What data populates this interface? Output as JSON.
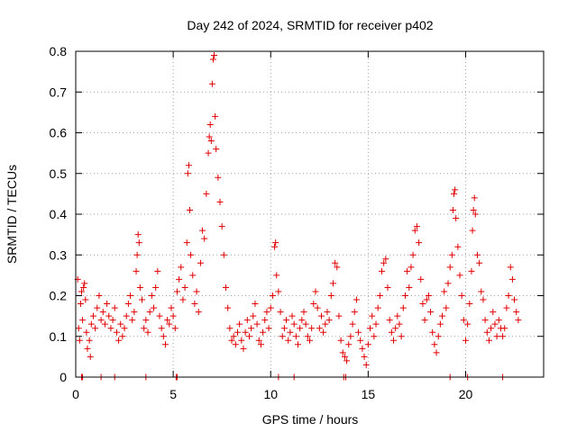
{
  "chart_data": {
    "type": "scatter",
    "title": "Day 242 of 2024, SRMTID for receiver p402",
    "xlabel": "GPS time / hours",
    "ylabel": "SRMTID / TECUs",
    "xlim": [
      0,
      24
    ],
    "ylim": [
      0,
      0.8
    ],
    "xticks": [
      0,
      5,
      10,
      15,
      20
    ],
    "yticks": [
      0,
      0.1,
      0.2,
      0.3,
      0.4,
      0.5,
      0.6,
      0.7,
      0.8
    ],
    "grid": true,
    "marker": "+",
    "colors": {
      "series": "#e00000",
      "grid": "#a0a0a0",
      "axes": "#000000"
    },
    "series": [
      {
        "name": "SRMTID",
        "points": [
          [
            0.1,
            0.24
          ],
          [
            0.15,
            0.12
          ],
          [
            0.2,
            0.09
          ],
          [
            0.25,
            0.18
          ],
          [
            0.3,
            0.21
          ],
          [
            0.35,
            0.14
          ],
          [
            0.4,
            0.22
          ],
          [
            0.45,
            0.23
          ],
          [
            0.5,
            0.19
          ],
          [
            0.55,
            0.11
          ],
          [
            0.6,
            0.07
          ],
          [
            0.7,
            0.09
          ],
          [
            0.75,
            0.05
          ],
          [
            0.8,
            0.13
          ],
          [
            0.9,
            0.15
          ],
          [
            1.0,
            0.12
          ],
          [
            1.1,
            0.17
          ],
          [
            1.2,
            0.2
          ],
          [
            1.3,
            0.14
          ],
          [
            1.4,
            0.16
          ],
          [
            1.5,
            0.13
          ],
          [
            1.6,
            0.18
          ],
          [
            1.7,
            0.15
          ],
          [
            1.8,
            0.12
          ],
          [
            1.9,
            0.14
          ],
          [
            2.0,
            0.17
          ],
          [
            2.1,
            0.11
          ],
          [
            2.2,
            0.09
          ],
          [
            2.3,
            0.13
          ],
          [
            2.4,
            0.1
          ],
          [
            2.5,
            0.12
          ],
          [
            2.6,
            0.15
          ],
          [
            2.7,
            0.18
          ],
          [
            2.8,
            0.2
          ],
          [
            2.9,
            0.14
          ],
          [
            3.0,
            0.16
          ],
          [
            3.1,
            0.26
          ],
          [
            3.15,
            0.3
          ],
          [
            3.2,
            0.35
          ],
          [
            3.25,
            0.33
          ],
          [
            3.3,
            0.22
          ],
          [
            3.4,
            0.19
          ],
          [
            3.5,
            0.12
          ],
          [
            3.6,
            0.14
          ],
          [
            3.7,
            0.11
          ],
          [
            3.8,
            0.16
          ],
          [
            3.9,
            0.2
          ],
          [
            4.0,
            0.17
          ],
          [
            4.1,
            0.22
          ],
          [
            4.2,
            0.26
          ],
          [
            4.3,
            0.15
          ],
          [
            4.4,
            0.12
          ],
          [
            4.5,
            0.1
          ],
          [
            4.6,
            0.08
          ],
          [
            4.7,
            0.14
          ],
          [
            4.8,
            0.13
          ],
          [
            4.9,
            0.17
          ],
          [
            5.0,
            0.15
          ],
          [
            5.1,
            0.12
          ],
          [
            5.2,
            0.21
          ],
          [
            5.3,
            0.24
          ],
          [
            5.4,
            0.27
          ],
          [
            5.5,
            0.19
          ],
          [
            5.6,
            0.22
          ],
          [
            5.7,
            0.33
          ],
          [
            5.75,
            0.5
          ],
          [
            5.8,
            0.52
          ],
          [
            5.85,
            0.41
          ],
          [
            5.9,
            0.3
          ],
          [
            6.0,
            0.25
          ],
          [
            6.1,
            0.18
          ],
          [
            6.2,
            0.21
          ],
          [
            6.3,
            0.16
          ],
          [
            6.4,
            0.28
          ],
          [
            6.5,
            0.36
          ],
          [
            6.6,
            0.34
          ],
          [
            6.7,
            0.45
          ],
          [
            6.8,
            0.55
          ],
          [
            6.85,
            0.59
          ],
          [
            6.9,
            0.62
          ],
          [
            6.95,
            0.58
          ],
          [
            7.0,
            0.72
          ],
          [
            7.05,
            0.78
          ],
          [
            7.1,
            0.79
          ],
          [
            7.15,
            0.64
          ],
          [
            7.2,
            0.56
          ],
          [
            7.3,
            0.49
          ],
          [
            7.4,
            0.43
          ],
          [
            7.5,
            0.37
          ],
          [
            7.6,
            0.3
          ],
          [
            7.7,
            0.22
          ],
          [
            7.8,
            0.17
          ],
          [
            7.9,
            0.12
          ],
          [
            8.0,
            0.09
          ],
          [
            8.1,
            0.1
          ],
          [
            8.2,
            0.08
          ],
          [
            8.3,
            0.11
          ],
          [
            8.4,
            0.13
          ],
          [
            8.5,
            0.09
          ],
          [
            8.6,
            0.07
          ],
          [
            8.7,
            0.11
          ],
          [
            8.8,
            0.14
          ],
          [
            8.9,
            0.1
          ],
          [
            9.0,
            0.12
          ],
          [
            9.1,
            0.15
          ],
          [
            9.2,
            0.18
          ],
          [
            9.3,
            0.13
          ],
          [
            9.4,
            0.09
          ],
          [
            9.5,
            0.08
          ],
          [
            9.6,
            0.11
          ],
          [
            9.7,
            0.14
          ],
          [
            9.8,
            0.16
          ],
          [
            9.9,
            0.12
          ],
          [
            10.0,
            0.17
          ],
          [
            10.1,
            0.2
          ],
          [
            10.2,
            0.32
          ],
          [
            10.25,
            0.33
          ],
          [
            10.3,
            0.25
          ],
          [
            10.4,
            0.21
          ],
          [
            10.5,
            0.16
          ],
          [
            10.6,
            0.1
          ],
          [
            10.7,
            0.12
          ],
          [
            10.8,
            0.14
          ],
          [
            10.9,
            0.09
          ],
          [
            11.0,
            0.11
          ],
          [
            11.1,
            0.15
          ],
          [
            11.2,
            0.13
          ],
          [
            11.3,
            0.1
          ],
          [
            11.4,
            0.08
          ],
          [
            11.5,
            0.12
          ],
          [
            11.6,
            0.14
          ],
          [
            11.7,
            0.16
          ],
          [
            11.8,
            0.13
          ],
          [
            11.9,
            0.1
          ],
          [
            12.0,
            0.09
          ],
          [
            12.1,
            0.12
          ],
          [
            12.2,
            0.18
          ],
          [
            12.3,
            0.21
          ],
          [
            12.4,
            0.17
          ],
          [
            12.5,
            0.12
          ],
          [
            12.6,
            0.15
          ],
          [
            12.7,
            0.11
          ],
          [
            12.8,
            0.13
          ],
          [
            12.9,
            0.16
          ],
          [
            13.0,
            0.14
          ],
          [
            13.1,
            0.2
          ],
          [
            13.2,
            0.23
          ],
          [
            13.3,
            0.28
          ],
          [
            13.4,
            0.27
          ],
          [
            13.5,
            0.15
          ],
          [
            13.6,
            0.09
          ],
          [
            13.7,
            0.06
          ],
          [
            13.8,
            0.05
          ],
          [
            13.9,
            0.04
          ],
          [
            14.0,
            0.08
          ],
          [
            14.1,
            0.1
          ],
          [
            14.2,
            0.13
          ],
          [
            14.3,
            0.16
          ],
          [
            14.4,
            0.19
          ],
          [
            14.5,
            0.11
          ],
          [
            14.6,
            0.09
          ],
          [
            14.7,
            0.07
          ],
          [
            14.8,
            0.05
          ],
          [
            14.9,
            0.03
          ],
          [
            15.0,
            0.08
          ],
          [
            15.1,
            0.12
          ],
          [
            15.2,
            0.15
          ],
          [
            15.3,
            0.1
          ],
          [
            15.4,
            0.13
          ],
          [
            15.5,
            0.17
          ],
          [
            15.6,
            0.2
          ],
          [
            15.7,
            0.26
          ],
          [
            15.8,
            0.28
          ],
          [
            15.9,
            0.29
          ],
          [
            16.0,
            0.22
          ],
          [
            16.1,
            0.14
          ],
          [
            16.2,
            0.11
          ],
          [
            16.3,
            0.09
          ],
          [
            16.4,
            0.12
          ],
          [
            16.5,
            0.15
          ],
          [
            16.6,
            0.13
          ],
          [
            16.7,
            0.1
          ],
          [
            16.8,
            0.17
          ],
          [
            16.9,
            0.2
          ],
          [
            17.0,
            0.26
          ],
          [
            17.1,
            0.22
          ],
          [
            17.2,
            0.27
          ],
          [
            17.3,
            0.3
          ],
          [
            17.4,
            0.36
          ],
          [
            17.5,
            0.37
          ],
          [
            17.6,
            0.33
          ],
          [
            17.7,
            0.24
          ],
          [
            17.8,
            0.18
          ],
          [
            17.9,
            0.14
          ],
          [
            18.0,
            0.19
          ],
          [
            18.1,
            0.2
          ],
          [
            18.2,
            0.16
          ],
          [
            18.3,
            0.11
          ],
          [
            18.4,
            0.08
          ],
          [
            18.5,
            0.06
          ],
          [
            18.6,
            0.1
          ],
          [
            18.7,
            0.13
          ],
          [
            18.8,
            0.15
          ],
          [
            18.9,
            0.21
          ],
          [
            19.0,
            0.17
          ],
          [
            19.1,
            0.23
          ],
          [
            19.2,
            0.27
          ],
          [
            19.3,
            0.3
          ],
          [
            19.35,
            0.41
          ],
          [
            19.4,
            0.45
          ],
          [
            19.45,
            0.46
          ],
          [
            19.5,
            0.39
          ],
          [
            19.6,
            0.32
          ],
          [
            19.7,
            0.25
          ],
          [
            19.8,
            0.2
          ],
          [
            19.9,
            0.14
          ],
          [
            20.0,
            0.09
          ],
          [
            20.1,
            0.13
          ],
          [
            20.2,
            0.18
          ],
          [
            20.3,
            0.26
          ],
          [
            20.35,
            0.36
          ],
          [
            20.4,
            0.41
          ],
          [
            20.45,
            0.44
          ],
          [
            20.5,
            0.4
          ],
          [
            20.6,
            0.3
          ],
          [
            20.7,
            0.28
          ],
          [
            20.8,
            0.21
          ],
          [
            20.9,
            0.19
          ],
          [
            21.0,
            0.14
          ],
          [
            21.1,
            0.11
          ],
          [
            21.2,
            0.09
          ],
          [
            21.3,
            0.12
          ],
          [
            21.4,
            0.16
          ],
          [
            21.5,
            0.13
          ],
          [
            21.6,
            0.1
          ],
          [
            21.7,
            0.14
          ],
          [
            21.8,
            0.12
          ],
          [
            21.9,
            0.1
          ],
          [
            22.0,
            0.12
          ],
          [
            22.1,
            0.17
          ],
          [
            22.2,
            0.2
          ],
          [
            22.3,
            0.27
          ],
          [
            22.4,
            0.24
          ],
          [
            22.5,
            0.19
          ],
          [
            22.6,
            0.16
          ],
          [
            22.7,
            0.14
          ]
        ]
      }
    ],
    "zero_points": [
      0.3,
      0.35,
      1.3,
      2.0,
      3.6,
      5.15,
      5.2,
      10.4,
      11.2,
      13.75,
      13.85,
      19.2,
      20.1,
      21.9
    ]
  }
}
